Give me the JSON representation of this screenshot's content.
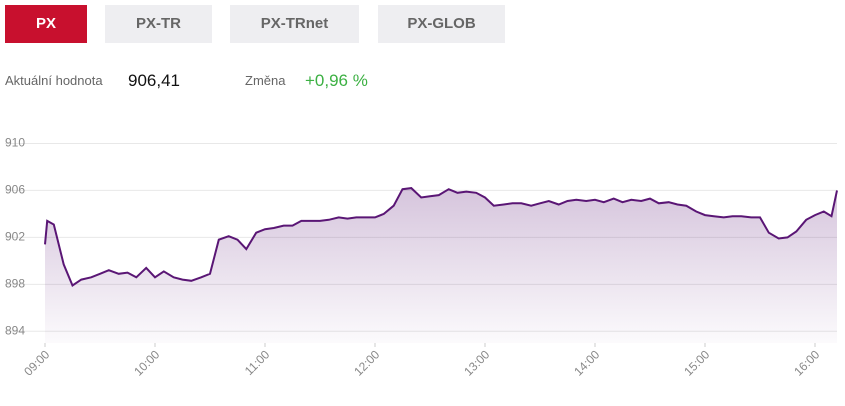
{
  "tabs": [
    {
      "label": "PX",
      "active": true
    },
    {
      "label": "PX-TR",
      "active": false
    },
    {
      "label": "PX-TRnet",
      "active": false
    },
    {
      "label": "PX-GLOB",
      "active": false
    }
  ],
  "info": {
    "value_label": "Aktuální hodnota",
    "value": "906,41",
    "change_label": "Změna",
    "change": "+0,96 %"
  },
  "chart_data": {
    "type": "area",
    "color": "#5a1675",
    "grid": true,
    "x": [
      9,
      9.02,
      9.08,
      9.17,
      9.25,
      9.33,
      9.42,
      9.5,
      9.58,
      9.67,
      9.75,
      9.83,
      9.92,
      10,
      10.08,
      10.17,
      10.25,
      10.33,
      10.42,
      10.5,
      10.58,
      10.67,
      10.75,
      10.83,
      10.92,
      11,
      11.08,
      11.17,
      11.25,
      11.33,
      11.42,
      11.5,
      11.58,
      11.67,
      11.75,
      11.83,
      11.92,
      12,
      12.08,
      12.17,
      12.25,
      12.33,
      12.42,
      12.5,
      12.58,
      12.67,
      12.75,
      12.83,
      12.92,
      13,
      13.08,
      13.17,
      13.25,
      13.33,
      13.42,
      13.5,
      13.58,
      13.67,
      13.75,
      13.83,
      13.92,
      14,
      14.08,
      14.17,
      14.25,
      14.33,
      14.42,
      14.5,
      14.58,
      14.67,
      14.75,
      14.83,
      14.92,
      15,
      15.08,
      15.17,
      15.25,
      15.33,
      15.42,
      15.5,
      15.58,
      15.67,
      15.75,
      15.83,
      15.92,
      16,
      16.08,
      16.15,
      16.2
    ],
    "values": [
      901.4,
      903.4,
      903.1,
      899.7,
      897.9,
      898.4,
      898.6,
      898.9,
      899.2,
      898.9,
      899.0,
      898.6,
      899.4,
      898.6,
      899.1,
      898.6,
      898.4,
      898.3,
      898.6,
      898.9,
      901.8,
      902.1,
      901.8,
      901.0,
      902.4,
      902.7,
      902.8,
      903.0,
      903.0,
      903.4,
      903.4,
      903.4,
      903.5,
      903.7,
      903.6,
      903.7,
      903.7,
      903.7,
      904.0,
      904.7,
      906.1,
      906.2,
      905.4,
      905.5,
      905.6,
      906.1,
      905.8,
      905.9,
      905.8,
      905.4,
      904.7,
      904.8,
      904.9,
      904.9,
      904.7,
      904.9,
      905.1,
      904.8,
      905.1,
      905.2,
      905.1,
      905.2,
      905.0,
      905.3,
      905.0,
      905.2,
      905.1,
      905.3,
      904.9,
      905.0,
      904.8,
      904.7,
      904.2,
      903.9,
      903.8,
      903.7,
      903.8,
      903.8,
      903.7,
      903.7,
      902.4,
      901.9,
      902.0,
      902.5,
      903.5,
      903.9,
      904.2,
      903.8,
      906.0
    ],
    "xlim": [
      9,
      16.2
    ],
    "xticks": [
      {
        "value": 9,
        "label": "09:00"
      },
      {
        "value": 10,
        "label": "10:00"
      },
      {
        "value": 11,
        "label": "11:00"
      },
      {
        "value": 12,
        "label": "12:00"
      },
      {
        "value": 13,
        "label": "13:00"
      },
      {
        "value": 14,
        "label": "14:00"
      },
      {
        "value": 15,
        "label": "15:00"
      },
      {
        "value": 16,
        "label": "16:00"
      }
    ],
    "ylim": [
      893,
      912
    ],
    "yticks": [
      894,
      898,
      902,
      906,
      910
    ]
  }
}
